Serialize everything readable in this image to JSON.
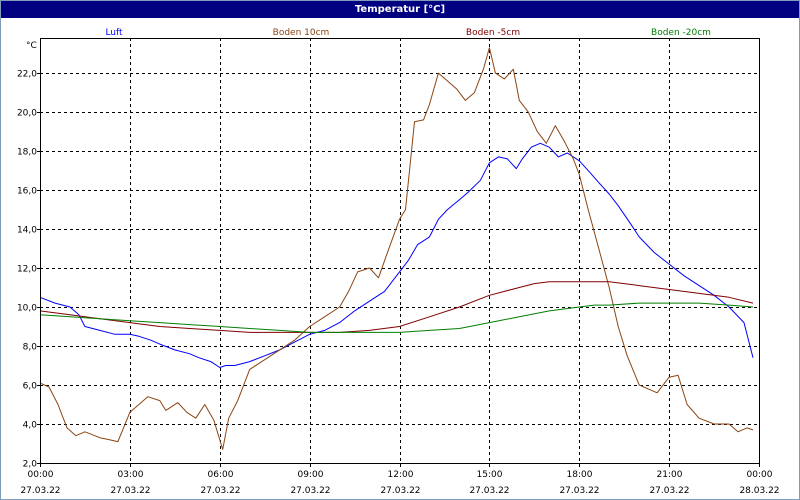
{
  "window": {
    "title": "Temperatur [°C]"
  },
  "chart_data": {
    "type": "line",
    "title": "Temperatur [°C]",
    "ylabel": "°C",
    "xlabel": "",
    "xlim": [
      0,
      24
    ],
    "ylim": [
      2.0,
      23.8
    ],
    "grid": true,
    "legend_position": "top",
    "y_ticks": [
      {
        "value": 2.0,
        "label": "2,0"
      },
      {
        "value": 4.0,
        "label": "4,0"
      },
      {
        "value": 6.0,
        "label": "6,0"
      },
      {
        "value": 8.0,
        "label": "8,0"
      },
      {
        "value": 10.0,
        "label": "10,0"
      },
      {
        "value": 12.0,
        "label": "12,0"
      },
      {
        "value": 14.0,
        "label": "14,0"
      },
      {
        "value": 16.0,
        "label": "16,0"
      },
      {
        "value": 18.0,
        "label": "18,0"
      },
      {
        "value": 20.0,
        "label": "20,0"
      },
      {
        "value": 22.0,
        "label": "22,0"
      }
    ],
    "x_ticks": [
      {
        "value": 0,
        "time": "00:00",
        "date": "27.03.22"
      },
      {
        "value": 3,
        "time": "03:00",
        "date": "27.03.22"
      },
      {
        "value": 6,
        "time": "06:00",
        "date": "27.03.22"
      },
      {
        "value": 9,
        "time": "09:00",
        "date": "27.03.22"
      },
      {
        "value": 12,
        "time": "12:00",
        "date": "27.03.22"
      },
      {
        "value": 15,
        "time": "15:00",
        "date": "27.03.22"
      },
      {
        "value": 18,
        "time": "18:00",
        "date": "27.03.22"
      },
      {
        "value": 21,
        "time": "21:00",
        "date": "27.03.22"
      },
      {
        "value": 24,
        "time": "00:00",
        "date": "28.03.22"
      }
    ],
    "series": [
      {
        "name": "Luft",
        "color": "#0000ff",
        "x": [
          0,
          0.5,
          1,
          1.3,
          1.5,
          2,
          2.5,
          3,
          3.3,
          3.7,
          4,
          4.5,
          5,
          5.3,
          5.7,
          6,
          6.2,
          6.5,
          7,
          7.5,
          8,
          8.5,
          9,
          9.5,
          10,
          10.5,
          11,
          11.5,
          12,
          12.3,
          12.6,
          13,
          13.3,
          13.6,
          14,
          14.3,
          14.7,
          15,
          15.3,
          15.6,
          15.9,
          16.1,
          16.4,
          16.7,
          17,
          17.3,
          17.6,
          18,
          18.3,
          18.7,
          19,
          19.3,
          19.7,
          20,
          20.5,
          21,
          21.5,
          22,
          22.5,
          23,
          23.5,
          23.8
        ],
        "y": [
          10.5,
          10.2,
          10.0,
          9.6,
          9.0,
          8.8,
          8.6,
          8.6,
          8.5,
          8.3,
          8.1,
          7.8,
          7.6,
          7.4,
          7.2,
          6.9,
          7.0,
          7.0,
          7.2,
          7.5,
          7.8,
          8.2,
          8.6,
          8.8,
          9.2,
          9.8,
          10.3,
          10.8,
          11.8,
          12.4,
          13.2,
          13.6,
          14.5,
          15.0,
          15.5,
          15.9,
          16.5,
          17.4,
          17.7,
          17.6,
          17.1,
          17.6,
          18.2,
          18.4,
          18.2,
          17.7,
          17.9,
          17.5,
          17.0,
          16.3,
          15.8,
          15.2,
          14.3,
          13.6,
          12.8,
          12.2,
          11.6,
          11.1,
          10.6,
          10.0,
          9.2,
          7.4
        ]
      },
      {
        "name": "Boden 10cm",
        "color": "#8b4513",
        "x": [
          0,
          0.3,
          0.6,
          0.9,
          1.2,
          1.5,
          2,
          2.3,
          2.6,
          3,
          3.3,
          3.6,
          4,
          4.2,
          4.6,
          4.9,
          5.2,
          5.5,
          5.8,
          6.1,
          6.3,
          6.6,
          7,
          7.5,
          8,
          8.5,
          9,
          9.5,
          10,
          10.3,
          10.6,
          11,
          11.3,
          11.6,
          12,
          12.2,
          12.5,
          12.8,
          13,
          13.3,
          13.6,
          13.9,
          14.2,
          14.5,
          14.8,
          15,
          15.2,
          15.5,
          15.8,
          16,
          16.3,
          16.6,
          16.9,
          17.2,
          17.5,
          17.8,
          18,
          18.3,
          18.6,
          19,
          19.3,
          19.6,
          20,
          20.3,
          20.6,
          21,
          21.3,
          21.6,
          22,
          22.5,
          23,
          23.3,
          23.6,
          23.8
        ],
        "y": [
          6.1,
          5.9,
          5.0,
          3.8,
          3.4,
          3.6,
          3.3,
          3.2,
          3.1,
          4.6,
          5.0,
          5.4,
          5.2,
          4.7,
          5.1,
          4.6,
          4.3,
          5.0,
          4.2,
          2.7,
          4.3,
          5.2,
          6.8,
          7.3,
          7.8,
          8.3,
          9.0,
          9.5,
          10.0,
          10.8,
          11.8,
          12.0,
          11.5,
          12.8,
          14.5,
          15.0,
          19.5,
          19.6,
          20.4,
          22.0,
          21.6,
          21.2,
          20.6,
          21.0,
          22.2,
          23.3,
          22.0,
          21.7,
          22.2,
          20.6,
          20.0,
          19.0,
          18.4,
          19.3,
          18.5,
          17.6,
          16.8,
          15.0,
          13.3,
          11.0,
          9.0,
          7.5,
          6.0,
          5.8,
          5.6,
          6.4,
          6.5,
          5.0,
          4.3,
          4.0,
          4.0,
          3.6,
          3.8,
          3.7
        ]
      },
      {
        "name": "Boden -5cm",
        "color": "#800000",
        "x": [
          0,
          1,
          2,
          3,
          4,
          5,
          6,
          7,
          8,
          9,
          10,
          11,
          12,
          13,
          14,
          15,
          16,
          16.5,
          17,
          18,
          19,
          19.5,
          20,
          21,
          22,
          23,
          23.8
        ],
        "y": [
          9.8,
          9.6,
          9.4,
          9.2,
          9.0,
          8.9,
          8.8,
          8.7,
          8.7,
          8.7,
          8.7,
          8.8,
          9.0,
          9.5,
          10.0,
          10.6,
          11.0,
          11.2,
          11.3,
          11.3,
          11.3,
          11.2,
          11.1,
          10.9,
          10.7,
          10.5,
          10.2
        ]
      },
      {
        "name": "Boden -20cm",
        "color": "#008000",
        "x": [
          0,
          1,
          2,
          3,
          4,
          5,
          6,
          7,
          8,
          9,
          10,
          11,
          12,
          13,
          14,
          15,
          16,
          17,
          18,
          18.5,
          19,
          20,
          21,
          22,
          23,
          23.8
        ],
        "y": [
          9.6,
          9.5,
          9.4,
          9.3,
          9.2,
          9.1,
          9.0,
          8.9,
          8.8,
          8.7,
          8.7,
          8.7,
          8.7,
          8.8,
          8.9,
          9.2,
          9.5,
          9.8,
          10.0,
          10.1,
          10.1,
          10.2,
          10.2,
          10.2,
          10.1,
          10.0
        ]
      }
    ]
  }
}
